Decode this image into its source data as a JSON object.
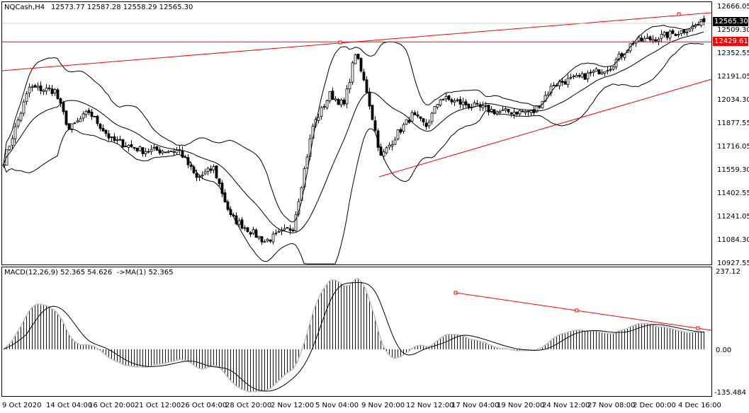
{
  "header": {
    "symbol": "NQCash,H4",
    "ohlc": "12573.77 12587.28 12558.29 12565.30"
  },
  "macd_header": {
    "label": "MACD(12,26,9) 52.365 54.626  ->MA(1) 52.365"
  },
  "price_axis": [
    "12666.05",
    "12509.30",
    "12352.55",
    "12191.05",
    "12034.30",
    "11877.55",
    "11716.05",
    "11559.30",
    "11402.55",
    "11241.05",
    "11084.30",
    "10927.55"
  ],
  "current_price": {
    "label": "12565.30",
    "color": "#000000"
  },
  "level_price": {
    "label": "12429.61",
    "color": "#ff0000"
  },
  "macd_axis": {
    "top": "237.12",
    "zero": "0.00",
    "bottom": "-135.484"
  },
  "time_axis": [
    "9 Oct 2020",
    "14 Oct 04:00",
    "16 Oct 20:00",
    "21 Oct 12:00",
    "26 Oct 04:00",
    "28 Oct 20:00",
    "2 Nov 12:00",
    "5 Nov 04:00",
    "9 Nov 20:00",
    "12 Nov 12:00",
    "17 Nov 04:00",
    "19 Nov 20:00",
    "24 Nov 12:00",
    "27 Nov 08:00",
    "2 Dec 00:00",
    "4 Dec 16:00"
  ],
  "colors": {
    "trendline": "#ff0000",
    "histogram": "#000080",
    "candle": "#000000",
    "bands": "#000000"
  },
  "chart_data": {
    "type": "candlestick",
    "timeframe": "H4",
    "price_range": [
      10927.55,
      12666.05
    ],
    "close_path": [
      [
        0,
        11621
      ],
      [
        9,
        12120
      ],
      [
        18,
        12097
      ],
      [
        23,
        11835
      ],
      [
        30,
        11955
      ],
      [
        38,
        11763
      ],
      [
        49,
        11692
      ],
      [
        62,
        11692
      ],
      [
        68,
        11502
      ],
      [
        74,
        11573
      ],
      [
        80,
        11241
      ],
      [
        92,
        11075
      ],
      [
        102,
        11170
      ],
      [
        109,
        11858
      ],
      [
        115,
        12072
      ],
      [
        120,
        12000
      ],
      [
        124,
        12357
      ],
      [
        128,
        12097
      ],
      [
        133,
        11645
      ],
      [
        139,
        11811
      ],
      [
        144,
        11930
      ],
      [
        149,
        11858
      ],
      [
        154,
        12049
      ],
      [
        164,
        12000
      ],
      [
        174,
        11955
      ],
      [
        187,
        11955
      ],
      [
        194,
        12144
      ],
      [
        204,
        12191
      ],
      [
        214,
        12263
      ],
      [
        222,
        12429
      ],
      [
        229,
        12452
      ],
      [
        239,
        12500
      ],
      [
        247,
        12565.3
      ]
    ],
    "horizontal_level": 12429.61,
    "indicators": [
      "Bollinger Bands(20)",
      "MACD(12,26,9)"
    ],
    "macd_range": [
      -135.484,
      237.12
    ]
  }
}
